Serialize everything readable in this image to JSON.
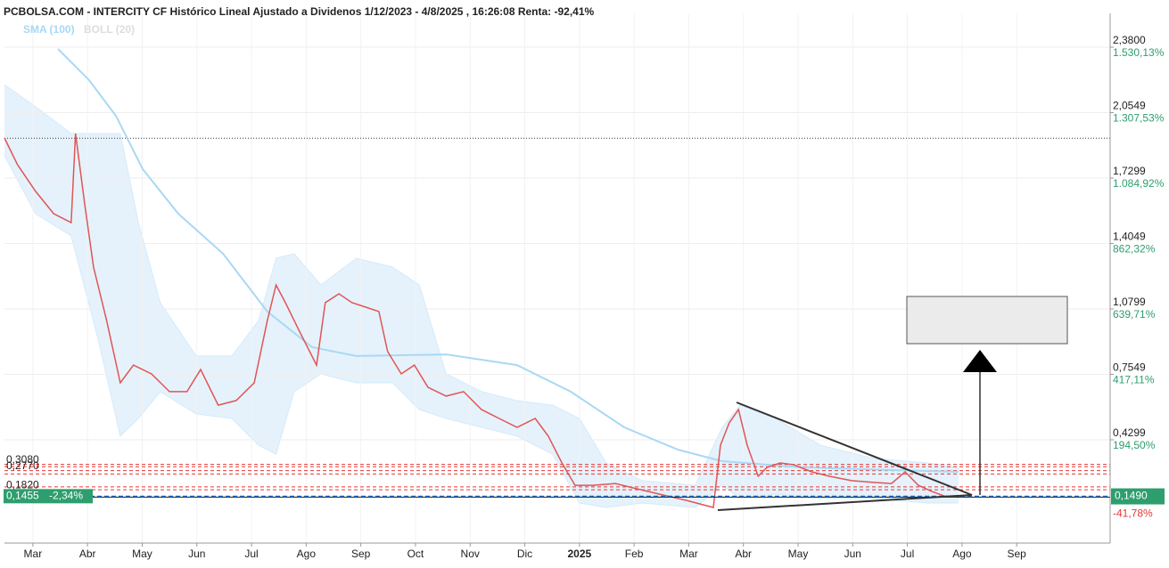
{
  "chart_data": {
    "type": "line",
    "title": "PCBOLSA.COM - INTERCITY CF Histórico Lineal Ajustado a Dividenos 1/12/2023 - 4/8/2025 , 16:26:08 Renta: -92,41%",
    "xlim": [
      -0.52,
      19.71
    ],
    "xticks": [
      {
        "value": 0,
        "label": "Mar"
      },
      {
        "value": 1,
        "label": "Abr"
      },
      {
        "value": 2,
        "label": "May"
      },
      {
        "value": 3,
        "label": "Jun"
      },
      {
        "value": 4,
        "label": "Jul"
      },
      {
        "value": 5,
        "label": "Ago"
      },
      {
        "value": 6,
        "label": "Sep"
      },
      {
        "value": 7,
        "label": "Oct"
      },
      {
        "value": 8,
        "label": "Nov"
      },
      {
        "value": 9,
        "label": "Dic"
      },
      {
        "value": 10,
        "label": "2025"
      },
      {
        "value": 11,
        "label": "Feb"
      },
      {
        "value": 12,
        "label": "Mar"
      },
      {
        "value": 13,
        "label": "Abr"
      },
      {
        "value": 14,
        "label": "May"
      },
      {
        "value": 15,
        "label": "Jun"
      },
      {
        "value": 16,
        "label": "Jul"
      },
      {
        "value": 17,
        "label": "Ago"
      },
      {
        "value": 18,
        "label": "Sep"
      }
    ],
    "ylim": [
      0.0055,
      2.548
    ],
    "yticks": [
      {
        "value": 2.38,
        "label": "2,3800"
      },
      {
        "value": 2.0549,
        "label": "2,0549"
      },
      {
        "value": 1.7299,
        "label": "1,7299"
      },
      {
        "value": 1.4049,
        "label": "1,4049"
      },
      {
        "value": 1.0799,
        "label": "1,0799"
      },
      {
        "value": 0.7549,
        "label": "0,7549"
      },
      {
        "value": 0.4299,
        "label": "0,4299"
      }
    ],
    "ytick_returns": [
      "1.530,13%",
      "1.307,53%",
      "1.084,92%",
      "862,32%",
      "639,71%",
      "417,11%",
      "194,50%"
    ],
    "grid": true,
    "last_price": {
      "value": 0.149,
      "label": "0,1490"
    },
    "last_return": "-41,78%",
    "last_close": {
      "value": 0.1455,
      "label": "0,1455"
    },
    "last_change": "-2,34%",
    "reference_level": 1.928,
    "levels": [
      {
        "value": 0.308,
        "label": "0,3080"
      },
      0.2961,
      {
        "value": 0.277,
        "label": "0,2770"
      },
      0.2605,
      0.196,
      {
        "value": 0.182,
        "label": "0,1820"
      }
    ],
    "price": {
      "color": "#e05555",
      "x": [
        -0.52,
        -0.28,
        0.05,
        0.38,
        0.7,
        0.78,
        0.95,
        1.11,
        1.35,
        1.6,
        1.84,
        2.17,
        2.5,
        2.82,
        3.07,
        3.39,
        3.72,
        4.05,
        4.29,
        4.45,
        4.62,
        4.86,
        5.19,
        5.35,
        5.6,
        5.84,
        6.09,
        6.33,
        6.49,
        6.74,
        6.98,
        7.23,
        7.56,
        7.88,
        8.21,
        8.53,
        8.86,
        9.19,
        9.43,
        9.68,
        9.92,
        10.25,
        10.66,
        10.98,
        11.47,
        11.96,
        12.45,
        12.58,
        12.74,
        12.91,
        13.07,
        13.27,
        13.43,
        13.67,
        13.92,
        14.25,
        14.57,
        14.98,
        15.39,
        15.71,
        15.96,
        16.2,
        16.45,
        16.69,
        16.94
      ],
      "values": [
        1.929,
        1.796,
        1.664,
        1.553,
        1.509,
        1.951,
        1.597,
        1.288,
        1.022,
        0.713,
        0.801,
        0.757,
        0.669,
        0.669,
        0.779,
        0.602,
        0.625,
        0.713,
        1.022,
        1.199,
        1.111,
        0.978,
        0.801,
        1.111,
        1.155,
        1.111,
        1.089,
        1.067,
        0.868,
        0.757,
        0.801,
        0.691,
        0.647,
        0.669,
        0.58,
        0.536,
        0.492,
        0.536,
        0.448,
        0.315,
        0.204,
        0.204,
        0.213,
        0.191,
        0.16,
        0.129,
        0.094,
        0.403,
        0.514,
        0.58,
        0.403,
        0.249,
        0.293,
        0.315,
        0.306,
        0.271,
        0.249,
        0.227,
        0.218,
        0.213,
        0.271,
        0.204,
        0.173,
        0.149,
        0.149
      ]
    },
    "sma": {
      "name": "SMA (100)",
      "color": "#a9d8f5",
      "x": [
        0.46,
        1.03,
        1.52,
        2.01,
        2.66,
        3.48,
        4.29,
        5.11,
        5.92,
        7.56,
        8.86,
        9.84,
        10.82,
        11.8,
        12.61,
        14.08,
        15.71,
        16.94
      ],
      "values": [
        2.371,
        2.216,
        2.039,
        1.774,
        1.553,
        1.354,
        1.067,
        0.89,
        0.846,
        0.854,
        0.801,
        0.669,
        0.492,
        0.381,
        0.324,
        0.293,
        0.28,
        0.271
      ]
    },
    "bollinger": {
      "name": "BOLL (20)",
      "color": "#d4eafa",
      "x": [
        -0.52,
        0.05,
        0.7,
        1.19,
        1.6,
        1.93,
        2.33,
        2.99,
        3.64,
        4.13,
        4.45,
        4.78,
        5.27,
        5.92,
        6.58,
        7.07,
        7.56,
        8.21,
        8.86,
        9.51,
        10.0,
        10.49,
        11.15,
        12.12,
        12.61,
        12.94,
        13.59,
        14.41,
        15.39,
        16.37,
        16.94
      ],
      "upper": [
        2.194,
        2.084,
        1.951,
        1.951,
        1.951,
        1.509,
        1.111,
        0.846,
        0.846,
        1.022,
        1.332,
        1.354,
        1.199,
        1.332,
        1.288,
        1.199,
        0.757,
        0.669,
        0.624,
        0.602,
        0.536,
        0.315,
        0.227,
        0.204,
        0.492,
        0.602,
        0.536,
        0.403,
        0.337,
        0.315,
        0.293
      ],
      "lower": [
        1.841,
        1.553,
        1.443,
        0.934,
        0.448,
        0.536,
        0.669,
        0.558,
        0.536,
        0.403,
        0.359,
        0.669,
        0.757,
        0.713,
        0.713,
        0.58,
        0.536,
        0.492,
        0.448,
        0.359,
        0.116,
        0.094,
        0.116,
        0.094,
        0.204,
        0.138,
        0.16,
        0.138,
        0.138,
        0.116,
        0.116
      ]
    }
  }
}
